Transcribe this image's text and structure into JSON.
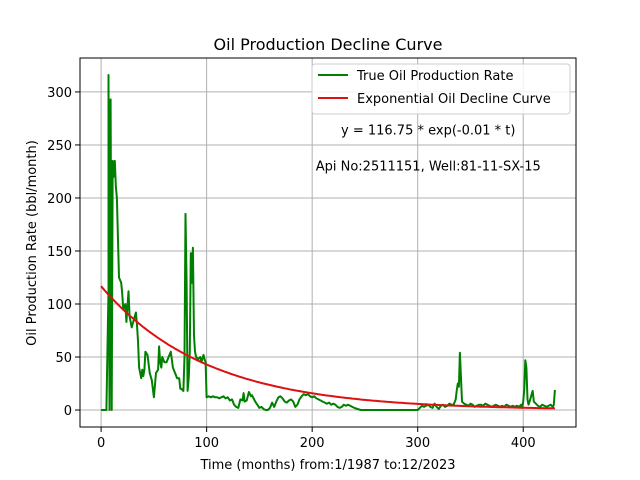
{
  "chart_data": {
    "type": "line",
    "title": "Oil Production Decline Curve",
    "xlabel": "Time (months) from:1/1987 to:12/2023",
    "ylabel": "Oil Production Rate (bbl/month)",
    "xlim": [
      -20,
      450
    ],
    "ylim": [
      -16,
      332
    ],
    "xticks": [
      0,
      100,
      200,
      300,
      400
    ],
    "yticks": [
      0,
      50,
      100,
      150,
      200,
      250,
      300
    ],
    "grid": true,
    "legend_position": "top-right",
    "annotations": [
      {
        "text": "y = 116.75 * exp(-0.01 * t)",
        "x": 310,
        "y": 260
      },
      {
        "text": "Api No:2511151, Well:81-11-SX-15",
        "x": 310,
        "y": 226
      }
    ],
    "series": [
      {
        "name": "True Oil Production Rate",
        "color": "#008000",
        "kind": "observed",
        "points": [
          [
            0,
            0
          ],
          [
            5,
            0
          ],
          [
            7,
            113
          ],
          [
            7,
            316
          ],
          [
            8,
            0
          ],
          [
            9,
            293
          ],
          [
            10,
            0
          ],
          [
            11,
            235
          ],
          [
            12,
            220
          ],
          [
            13,
            235
          ],
          [
            14,
            210
          ],
          [
            15,
            200
          ],
          [
            16,
            160
          ],
          [
            17,
            125
          ],
          [
            19,
            120
          ],
          [
            20,
            110
          ],
          [
            21,
            95
          ],
          [
            23,
            100
          ],
          [
            24,
            83
          ],
          [
            26,
            112
          ],
          [
            27,
            88
          ],
          [
            29,
            78
          ],
          [
            31,
            85
          ],
          [
            33,
            92
          ],
          [
            34,
            80
          ],
          [
            35,
            65
          ],
          [
            36,
            40
          ],
          [
            37,
            35
          ],
          [
            38,
            30
          ],
          [
            39,
            38
          ],
          [
            40,
            32
          ],
          [
            41,
            38
          ],
          [
            42,
            55
          ],
          [
            44,
            52
          ],
          [
            46,
            35
          ],
          [
            48,
            28
          ],
          [
            50,
            12
          ],
          [
            52,
            35
          ],
          [
            54,
            38
          ],
          [
            55,
            60
          ],
          [
            56,
            45
          ],
          [
            57,
            40
          ],
          [
            58,
            50
          ],
          [
            60,
            45
          ],
          [
            62,
            45
          ],
          [
            64,
            50
          ],
          [
            66,
            55
          ],
          [
            68,
            40
          ],
          [
            70,
            35
          ],
          [
            72,
            30
          ],
          [
            74,
            30
          ],
          [
            75,
            20
          ],
          [
            76,
            20
          ],
          [
            78,
            18
          ],
          [
            79,
            50
          ],
          [
            80,
            185
          ],
          [
            81,
            120
          ],
          [
            82,
            18
          ],
          [
            83,
            30
          ],
          [
            84,
            55
          ],
          [
            85,
            148
          ],
          [
            86,
            120
          ],
          [
            87,
            153
          ],
          [
            88,
            70
          ],
          [
            89,
            55
          ],
          [
            90,
            50
          ],
          [
            92,
            48
          ],
          [
            94,
            50
          ],
          [
            95,
            45
          ],
          [
            97,
            52
          ],
          [
            98,
            48
          ],
          [
            99,
            45
          ],
          [
            100,
            12
          ],
          [
            102,
            13
          ],
          [
            104,
            12
          ],
          [
            106,
            13
          ],
          [
            108,
            12
          ],
          [
            110,
            12
          ],
          [
            112,
            11
          ],
          [
            114,
            12
          ],
          [
            116,
            13
          ],
          [
            118,
            11
          ],
          [
            120,
            12
          ],
          [
            122,
            9
          ],
          [
            124,
            10
          ],
          [
            126,
            5
          ],
          [
            128,
            3
          ],
          [
            130,
            2
          ],
          [
            132,
            10
          ],
          [
            134,
            9
          ],
          [
            135,
            16
          ],
          [
            136,
            8
          ],
          [
            138,
            9
          ],
          [
            140,
            17
          ],
          [
            142,
            13
          ],
          [
            143,
            14
          ],
          [
            144,
            12
          ],
          [
            146,
            8
          ],
          [
            148,
            5
          ],
          [
            150,
            2
          ],
          [
            152,
            3
          ],
          [
            154,
            1
          ],
          [
            156,
            0
          ],
          [
            158,
            0
          ],
          [
            160,
            2
          ],
          [
            162,
            7
          ],
          [
            164,
            3
          ],
          [
            166,
            8
          ],
          [
            168,
            12
          ],
          [
            170,
            13
          ],
          [
            172,
            11
          ],
          [
            174,
            8
          ],
          [
            176,
            7
          ],
          [
            178,
            9
          ],
          [
            180,
            10
          ],
          [
            182,
            8
          ],
          [
            184,
            3
          ],
          [
            186,
            5
          ],
          [
            188,
            10
          ],
          [
            190,
            13
          ],
          [
            192,
            15
          ],
          [
            194,
            14
          ],
          [
            196,
            15
          ],
          [
            198,
            13
          ],
          [
            200,
            12
          ],
          [
            202,
            13
          ],
          [
            204,
            11
          ],
          [
            206,
            10
          ],
          [
            208,
            9
          ],
          [
            210,
            8
          ],
          [
            212,
            7
          ],
          [
            214,
            6
          ],
          [
            216,
            7
          ],
          [
            218,
            5
          ],
          [
            220,
            6
          ],
          [
            222,
            5
          ],
          [
            224,
            3
          ],
          [
            226,
            2
          ],
          [
            228,
            3
          ],
          [
            230,
            5
          ],
          [
            232,
            4
          ],
          [
            234,
            5
          ],
          [
            236,
            4
          ],
          [
            238,
            3
          ],
          [
            240,
            2
          ],
          [
            243,
            1
          ],
          [
            246,
            0
          ],
          [
            250,
            0
          ],
          [
            260,
            0
          ],
          [
            270,
            0
          ],
          [
            280,
            0
          ],
          [
            290,
            0
          ],
          [
            300,
            0
          ],
          [
            302,
            2
          ],
          [
            304,
            4
          ],
          [
            306,
            3
          ],
          [
            308,
            4
          ],
          [
            310,
            5
          ],
          [
            312,
            3
          ],
          [
            314,
            2
          ],
          [
            316,
            6
          ],
          [
            318,
            3
          ],
          [
            320,
            1
          ],
          [
            322,
            4
          ],
          [
            324,
            5
          ],
          [
            326,
            3
          ],
          [
            328,
            4
          ],
          [
            330,
            6
          ],
          [
            332,
            5
          ],
          [
            334,
            5
          ],
          [
            336,
            10
          ],
          [
            337,
            18
          ],
          [
            338,
            25
          ],
          [
            339,
            22
          ],
          [
            340,
            54
          ],
          [
            341,
            30
          ],
          [
            342,
            8
          ],
          [
            344,
            6
          ],
          [
            346,
            5
          ],
          [
            348,
            4
          ],
          [
            350,
            6
          ],
          [
            352,
            5
          ],
          [
            354,
            3
          ],
          [
            356,
            4
          ],
          [
            358,
            5
          ],
          [
            360,
            5
          ],
          [
            362,
            4
          ],
          [
            364,
            6
          ],
          [
            366,
            5
          ],
          [
            368,
            4
          ],
          [
            370,
            3
          ],
          [
            372,
            4
          ],
          [
            374,
            5
          ],
          [
            376,
            4
          ],
          [
            378,
            3
          ],
          [
            380,
            4
          ],
          [
            382,
            3
          ],
          [
            384,
            5
          ],
          [
            386,
            4
          ],
          [
            388,
            3
          ],
          [
            390,
            4
          ],
          [
            392,
            3
          ],
          [
            394,
            4
          ],
          [
            396,
            3
          ],
          [
            398,
            5
          ],
          [
            399,
            2
          ],
          [
            400,
            8
          ],
          [
            401,
            20
          ],
          [
            402,
            47
          ],
          [
            403,
            40
          ],
          [
            404,
            10
          ],
          [
            405,
            5
          ],
          [
            406,
            8
          ],
          [
            408,
            15
          ],
          [
            409,
            18
          ],
          [
            410,
            8
          ],
          [
            412,
            6
          ],
          [
            414,
            4
          ],
          [
            416,
            3
          ],
          [
            418,
            5
          ],
          [
            420,
            4
          ],
          [
            422,
            3
          ],
          [
            424,
            4
          ],
          [
            426,
            5
          ],
          [
            428,
            3
          ],
          [
            429,
            5
          ],
          [
            430,
            19
          ]
        ]
      },
      {
        "name": "Exponential Oil Decline Curve",
        "color": "#dd1111",
        "kind": "model",
        "a": 116.75,
        "b": 0.01,
        "t_range": [
          0,
          430
        ]
      }
    ]
  }
}
